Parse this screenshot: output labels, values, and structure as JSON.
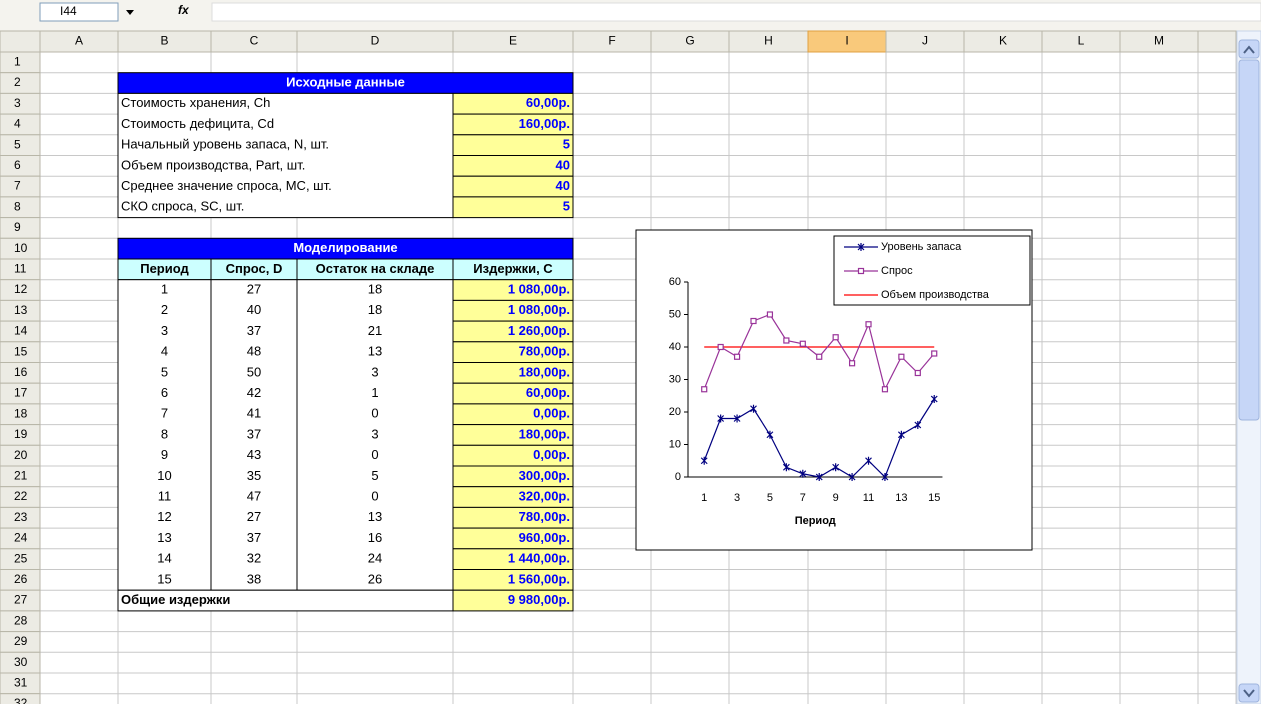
{
  "formula_bar": {
    "name_box": "I44",
    "function_icon": "fx"
  },
  "columns": [
    "A",
    "B",
    "C",
    "D",
    "E",
    "F",
    "G",
    "H",
    "I",
    "J",
    "K",
    "L",
    "M"
  ],
  "rows": [
    1,
    2,
    3,
    4,
    5,
    6,
    7,
    8,
    9,
    10,
    11,
    12,
    13,
    14,
    15,
    16,
    17,
    18,
    19,
    20,
    21,
    22,
    23,
    24,
    25,
    26,
    27,
    28,
    29,
    30,
    31,
    32
  ],
  "inputs": {
    "title": "Исходные данные",
    "rows": [
      [
        "Стоимость хранения, Ch",
        "60,00р."
      ],
      [
        "Стоимость дефицита, Cd",
        "160,00р."
      ],
      [
        "Начальный уровень запаса, N, шт.",
        5
      ],
      [
        "Объем производства, Part, шт.",
        40
      ],
      [
        "Среднее значение спроса, MC, шт.",
        40
      ],
      [
        "СКО спроса, SC, шт.",
        5
      ]
    ]
  },
  "simulation": {
    "title": "Моделирование",
    "header": [
      "Период",
      "Спрос, D",
      "Остаток на складе",
      "Издержки, C"
    ],
    "rows": [
      [
        1,
        27,
        18,
        "1 080,00р."
      ],
      [
        2,
        40,
        18,
        "1 080,00р."
      ],
      [
        3,
        37,
        21,
        "1 260,00р."
      ],
      [
        4,
        48,
        13,
        "780,00р."
      ],
      [
        5,
        50,
        3,
        "180,00р."
      ],
      [
        6,
        42,
        1,
        "60,00р."
      ],
      [
        7,
        41,
        0,
        "0,00р."
      ],
      [
        8,
        37,
        3,
        "180,00р."
      ],
      [
        9,
        43,
        0,
        "0,00р."
      ],
      [
        10,
        35,
        5,
        "300,00р."
      ],
      [
        11,
        47,
        0,
        "320,00р."
      ],
      [
        12,
        27,
        13,
        "780,00р."
      ],
      [
        13,
        37,
        16,
        "960,00р."
      ],
      [
        14,
        32,
        24,
        "1 440,00р."
      ],
      [
        15,
        38,
        26,
        "1 560,00р."
      ]
    ],
    "total": [
      "Общие издержки",
      "9 980,00р."
    ]
  },
  "chart_data": {
    "type": "line",
    "x_label": "Период",
    "categories": [
      1,
      null,
      3,
      null,
      5,
      null,
      7,
      null,
      9,
      null,
      11,
      null,
      13,
      null,
      15
    ],
    "ylim": [
      0,
      60
    ],
    "yticks": [
      0,
      10,
      20,
      30,
      40,
      50,
      60
    ],
    "legend": "upper right",
    "series": [
      {
        "name": "Уровень запаса",
        "color": "#000080",
        "marker": "star",
        "values": [
          5,
          18,
          18,
          21,
          13,
          3,
          1,
          0,
          3,
          0,
          5,
          0,
          13,
          16,
          24
        ]
      },
      {
        "name": "Спрос",
        "color": "#993399",
        "marker": "square",
        "values": [
          27,
          40,
          37,
          48,
          50,
          42,
          41,
          37,
          43,
          35,
          47,
          27,
          37,
          32,
          38
        ]
      },
      {
        "name": "Объем производства",
        "color": "#ff0000",
        "marker": "none",
        "values": [
          40,
          40,
          40,
          40,
          40,
          40,
          40,
          40,
          40,
          40,
          40,
          40,
          40,
          40,
          40
        ]
      }
    ]
  }
}
